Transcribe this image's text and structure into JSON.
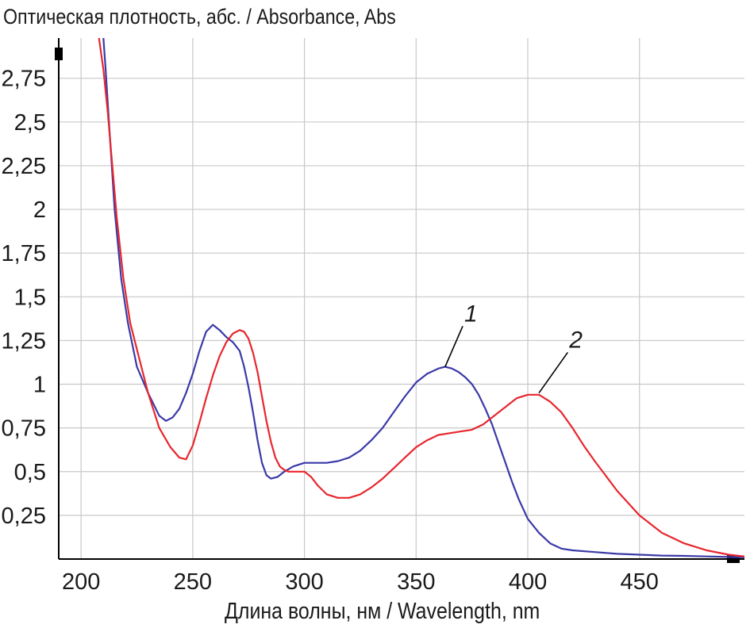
{
  "chart_data": {
    "type": "line",
    "title": "",
    "ylabel": "Оптическая плотность, абс. / Absorbance, Abs",
    "xlabel": "Длина волны, нм / Wavelength, nm",
    "xlim": [
      190,
      497
    ],
    "ylim": [
      0,
      2.98
    ],
    "x_ticks": [
      200,
      250,
      300,
      350,
      400,
      450
    ],
    "y_ticks": [
      0.25,
      0.5,
      0.75,
      1,
      1.25,
      1.5,
      1.75,
      2,
      2.25,
      2.5,
      2.75
    ],
    "y_tick_labels": [
      "0,25",
      "0,5",
      "0,75",
      "1",
      "1,25",
      "1,5",
      "1,75",
      "2",
      "2,25",
      "2,5",
      "2,75"
    ],
    "x_tick_labels": [
      "200",
      "250",
      "300",
      "350",
      "400",
      "450"
    ],
    "grid": true,
    "series": [
      {
        "name": "1",
        "color": "#3a3aa8",
        "x": [
          210,
          211,
          213,
          215,
          218,
          221,
          225,
          230,
          235,
          238,
          241,
          244,
          247,
          250,
          253,
          256,
          259,
          262,
          265,
          268,
          271,
          273,
          275,
          277,
          279,
          281,
          283,
          285,
          288,
          291,
          295,
          300,
          305,
          310,
          315,
          320,
          325,
          330,
          335,
          340,
          345,
          350,
          355,
          360,
          363,
          366,
          369,
          372,
          375,
          378,
          381,
          384,
          387,
          390,
          393,
          396,
          400,
          405,
          410,
          415,
          420,
          430,
          440,
          450,
          460,
          470,
          480,
          490,
          497
        ],
        "y": [
          2.98,
          2.8,
          2.4,
          2.0,
          1.6,
          1.35,
          1.1,
          0.95,
          0.82,
          0.79,
          0.81,
          0.86,
          0.95,
          1.06,
          1.19,
          1.3,
          1.34,
          1.31,
          1.27,
          1.24,
          1.19,
          1.1,
          0.98,
          0.84,
          0.68,
          0.55,
          0.48,
          0.46,
          0.47,
          0.5,
          0.53,
          0.55,
          0.55,
          0.55,
          0.56,
          0.58,
          0.62,
          0.68,
          0.75,
          0.84,
          0.93,
          1.01,
          1.06,
          1.09,
          1.1,
          1.09,
          1.07,
          1.04,
          1.0,
          0.94,
          0.86,
          0.77,
          0.66,
          0.55,
          0.44,
          0.34,
          0.23,
          0.15,
          0.09,
          0.06,
          0.05,
          0.04,
          0.03,
          0.025,
          0.02,
          0.018,
          0.015,
          0.012,
          0.01
        ]
      },
      {
        "name": "2",
        "color": "#e8262e",
        "x": [
          208,
          210,
          212,
          214,
          216,
          219,
          222,
          226,
          230,
          235,
          240,
          244,
          247,
          250,
          253,
          256,
          259,
          262,
          265,
          268,
          271,
          273,
          275,
          277,
          279,
          281,
          283,
          285,
          287,
          289,
          291,
          293,
          296,
          300,
          303,
          306,
          310,
          315,
          320,
          325,
          330,
          335,
          340,
          345,
          350,
          355,
          360,
          365,
          370,
          375,
          380,
          385,
          390,
          395,
          400,
          405,
          410,
          415,
          420,
          425,
          430,
          440,
          450,
          460,
          470,
          480,
          490,
          497
        ],
        "y": [
          2.98,
          2.8,
          2.55,
          2.25,
          1.95,
          1.6,
          1.35,
          1.15,
          0.95,
          0.75,
          0.64,
          0.58,
          0.57,
          0.65,
          0.78,
          0.92,
          1.05,
          1.16,
          1.24,
          1.29,
          1.31,
          1.3,
          1.26,
          1.18,
          1.07,
          0.93,
          0.79,
          0.67,
          0.58,
          0.53,
          0.51,
          0.5,
          0.5,
          0.5,
          0.47,
          0.42,
          0.37,
          0.35,
          0.35,
          0.37,
          0.41,
          0.46,
          0.52,
          0.58,
          0.64,
          0.68,
          0.71,
          0.72,
          0.73,
          0.74,
          0.77,
          0.82,
          0.87,
          0.92,
          0.94,
          0.94,
          0.9,
          0.84,
          0.75,
          0.65,
          0.56,
          0.39,
          0.25,
          0.15,
          0.09,
          0.05,
          0.025,
          0.015
        ]
      }
    ],
    "annotations": [
      {
        "text": "1",
        "series": "1",
        "x": 363,
        "y": 1.1,
        "label_x": 373,
        "label_y": 1.35
      },
      {
        "text": "2",
        "series": "2",
        "x": 405,
        "y": 0.95,
        "label_x": 420,
        "label_y": 1.2
      }
    ]
  }
}
